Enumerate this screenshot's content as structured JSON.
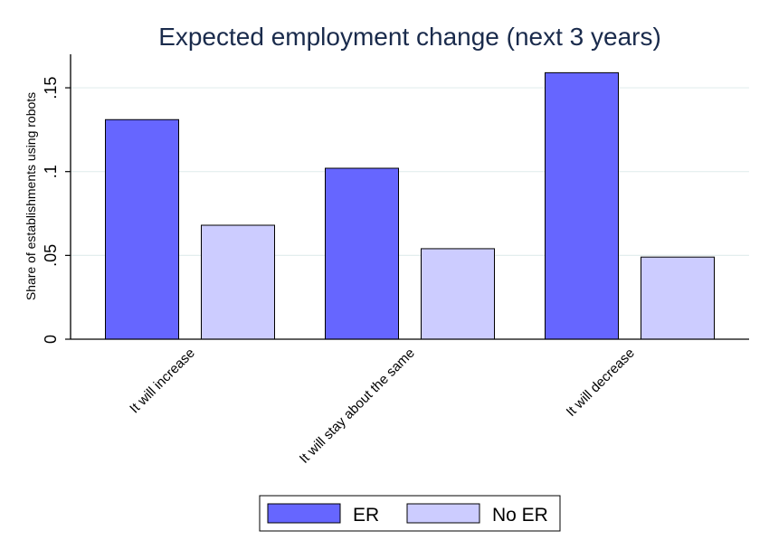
{
  "chart_data": {
    "type": "bar",
    "title": "Expected employment change (next 3 years)",
    "xlabel": "",
    "ylabel": "Share of establishments using robots",
    "categories": [
      "It will increase",
      "It will stay about the same",
      "It will decrease"
    ],
    "series": [
      {
        "name": "ER",
        "values": [
          0.131,
          0.102,
          0.159
        ],
        "color": "#6666ff"
      },
      {
        "name": "No ER",
        "values": [
          0.068,
          0.054,
          0.049
        ],
        "color": "#ccccff"
      }
    ],
    "ylim": [
      0,
      0.17
    ],
    "yticks": [
      0,
      0.05,
      0.1,
      0.15
    ],
    "ytick_labels": [
      "0",
      ".05",
      ".1",
      ".15"
    ],
    "grid": true,
    "legend_position": "bottom",
    "colors": {
      "title": "#1a2b4c",
      "grid": "#e3eeee",
      "axis": "#000000",
      "bar_stroke": "#000000"
    }
  }
}
